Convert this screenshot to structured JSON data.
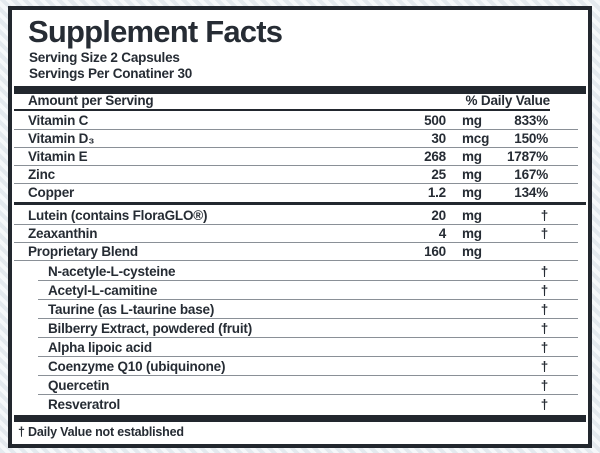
{
  "colors": {
    "border": "#22272e",
    "text": "#262c34",
    "thin_rule": "#8a9097",
    "panel_bg": "#ffffff",
    "outer_bg": "#e3e9ee"
  },
  "label": {
    "title": "Supplement Facts",
    "serving_size": "Serving Size 2 Capsules",
    "servings_per_container": "Servings Per Conatiner 30",
    "columns": {
      "amount_header": "Amount per Serving",
      "dv_header": "% Daily Value"
    },
    "nutrients": [
      {
        "name": "Vitamin C",
        "amount": "500",
        "unit": "mg",
        "dv": "833%"
      },
      {
        "name": "Vitamin D₃",
        "amount": "30",
        "unit": "mcg",
        "dv": "150%"
      },
      {
        "name": "Vitamin E",
        "amount": "268",
        "unit": "mg",
        "dv": "1787%"
      },
      {
        "name": "Zinc",
        "amount": "25",
        "unit": "mg",
        "dv": "167%"
      },
      {
        "name": "Copper",
        "amount": "1.2",
        "unit": "mg",
        "dv": "134%"
      }
    ],
    "other_ingredients": [
      {
        "name": "Lutein (contains FloraGLO®)",
        "amount": "20",
        "unit": "mg",
        "dv": "†"
      },
      {
        "name": "Zeaxanthin",
        "amount": "4",
        "unit": "mg",
        "dv": "†"
      },
      {
        "name": "Proprietary Blend",
        "amount": "160",
        "unit": "mg",
        "dv": ""
      }
    ],
    "blend_items": [
      {
        "name": "N-acetyle-L-cysteine",
        "dv": "†"
      },
      {
        "name": "Acetyl-L-camitine",
        "dv": "†"
      },
      {
        "name": "Taurine (as L-taurine base)",
        "dv": "†"
      },
      {
        "name": "Bilberry Extract, powdered (fruit)",
        "dv": "†"
      },
      {
        "name": "Alpha lipoic acid",
        "dv": "†"
      },
      {
        "name": "Coenzyme Q10 (ubiquinone)",
        "dv": "†"
      },
      {
        "name": "Quercetin",
        "dv": "†"
      },
      {
        "name": "Resveratrol",
        "dv": "†"
      }
    ],
    "footnote": "† Daily Value not established"
  }
}
